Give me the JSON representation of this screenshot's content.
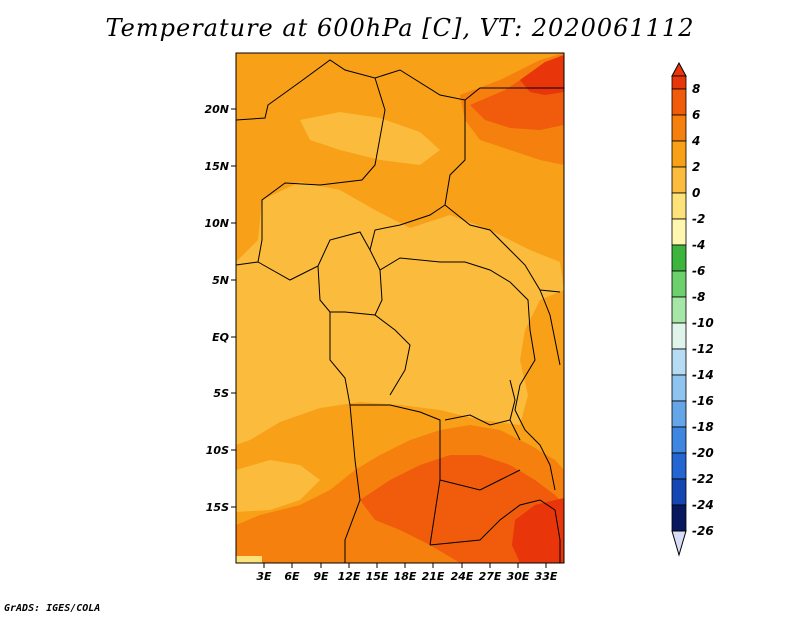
{
  "title": "Temperature at 600hPa [C], VT: 2020061112",
  "footer": "GrADS: IGES/COLA",
  "lat_labels": [
    "20N",
    "15N",
    "10N",
    "5N",
    "EQ",
    "5S",
    "10S",
    "15S"
  ],
  "lon_labels": [
    "3E",
    "6E",
    "9E",
    "12E",
    "15E",
    "18E",
    "21E",
    "24E",
    "27E",
    "30E",
    "33E"
  ],
  "colorbar": {
    "levels": [
      "8",
      "6",
      "4",
      "2",
      "0",
      "-2",
      "-4",
      "-6",
      "-8",
      "-10",
      "-12",
      "-14",
      "-16",
      "-18",
      "-20",
      "-22",
      "-24",
      "-26"
    ],
    "colors": [
      "#e8350a",
      "#f05c0c",
      "#f6800e",
      "#f8a018",
      "#fbbb3c",
      "#fde27a",
      "#fff6b0",
      "#3db43d",
      "#6cd06c",
      "#a6e6a6",
      "#dff5ec",
      "#b5dcf3",
      "#8ec4ef",
      "#64a6e8",
      "#3e86df",
      "#2366d2",
      "#1447b3",
      "#0c2f8a",
      "#07185e",
      "#d8dcf6"
    ]
  },
  "map": {
    "background_color": "#f8a018",
    "zones": [
      "#fbbb3c",
      "#f6800e",
      "#f05c0c",
      "#e8350a",
      "#fde27a"
    ]
  }
}
